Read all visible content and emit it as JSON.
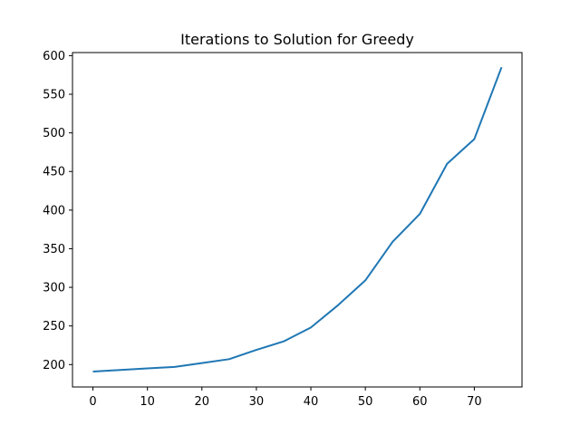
{
  "chart_data": {
    "type": "line",
    "title": "Iterations to Solution for Greedy",
    "xlabel": "",
    "ylabel": "",
    "xlim": [
      -3.75,
      78.75
    ],
    "ylim": [
      171,
      604
    ],
    "grid": false,
    "x_ticks": [
      0,
      10,
      20,
      30,
      40,
      50,
      60,
      70
    ],
    "y_ticks": [
      200,
      250,
      300,
      350,
      400,
      450,
      500,
      550,
      600
    ],
    "series": [
      {
        "color": "#1f77b4",
        "x": [
          0,
          5,
          10,
          15,
          20,
          25,
          30,
          35,
          40,
          45,
          50,
          55,
          60,
          65,
          70,
          75
        ],
        "y": [
          191,
          193,
          195,
          197,
          202,
          207,
          219,
          230,
          248,
          277,
          309,
          359,
          395,
          460,
          492,
          585
        ]
      }
    ]
  }
}
